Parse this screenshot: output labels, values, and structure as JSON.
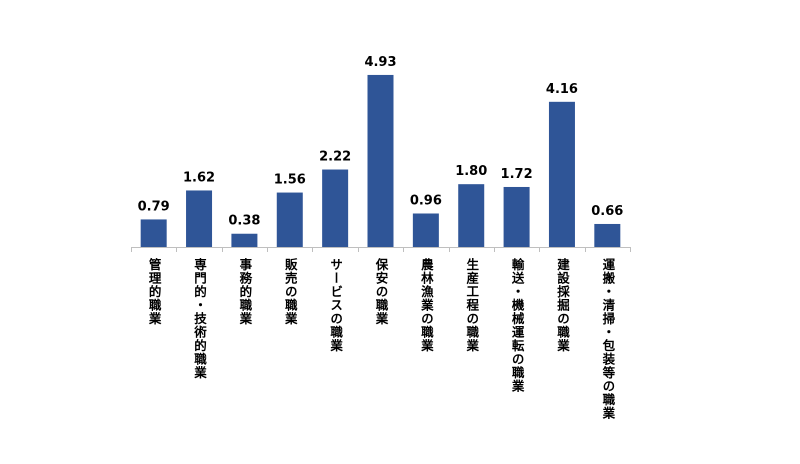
{
  "chart_data": {
    "type": "bar",
    "title": "",
    "xlabel": "",
    "ylabel": "",
    "categories": [
      "管理的職業",
      "専門的・技術的職業",
      "事務的職業",
      "販売の職業",
      "サービスの職業",
      "保安の職業",
      "農林漁業の職業",
      "生産工程の職業",
      "輸送・機械運転の職業",
      "建設採掘の職業",
      "運搬・清掃・包装等の職業"
    ],
    "values": [
      0.79,
      1.62,
      0.38,
      1.56,
      2.22,
      4.93,
      0.96,
      1.8,
      1.72,
      4.16,
      0.66
    ],
    "data_labels": [
      "0.79",
      "1.62",
      "0.38",
      "1.56",
      "2.22",
      "4.93",
      "0.96",
      "1.80",
      "1.72",
      "4.16",
      "0.66"
    ],
    "ylim": [
      0,
      5.5
    ],
    "grid": false,
    "legend": "none",
    "bar_color": "#2F5597"
  }
}
